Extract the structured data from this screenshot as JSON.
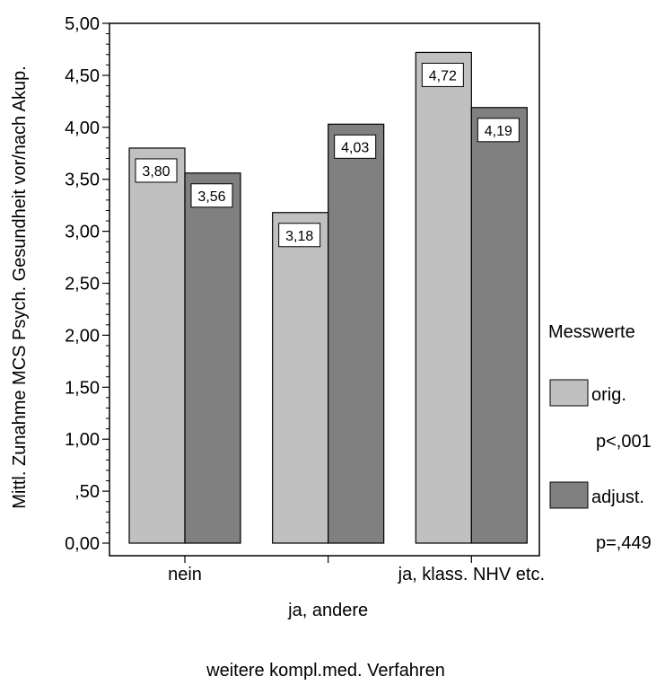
{
  "chart_data": {
    "type": "bar",
    "title": "",
    "xlabel": "weitere kompl.med. Verfahren",
    "ylabel": "Mittl. Zunahme MCS Psych. Gesundheit vor/nach Akup.",
    "categories": [
      "nein",
      "ja, andere",
      "ja, klass. NHV etc."
    ],
    "series": [
      {
        "name": "orig.",
        "values": [
          3.8,
          3.18,
          4.72
        ],
        "labels": [
          "3,80",
          "3,18",
          "4,72"
        ],
        "color": "#c0c0c0"
      },
      {
        "name": "adjust.",
        "values": [
          3.56,
          4.03,
          4.19
        ],
        "labels": [
          "3,56",
          "4,03",
          "4,19"
        ],
        "color": "#808080"
      }
    ],
    "ylim": [
      0,
      5
    ],
    "yticks": [
      0,
      0.5,
      1,
      1.5,
      2,
      2.5,
      3,
      3.5,
      4,
      4.5,
      5
    ],
    "ytick_labels": [
      "0,00",
      ",50",
      "1,00",
      "1,50",
      "2,00",
      "2,50",
      "3,00",
      "3,50",
      "4,00",
      "4,50",
      "5,00"
    ],
    "grid": false,
    "legend": {
      "title": "Messwerte",
      "placement": "right",
      "entries": [
        {
          "label": "orig.",
          "note": "p<,001"
        },
        {
          "label": "adjust.",
          "note": "p=,449"
        }
      ]
    }
  }
}
